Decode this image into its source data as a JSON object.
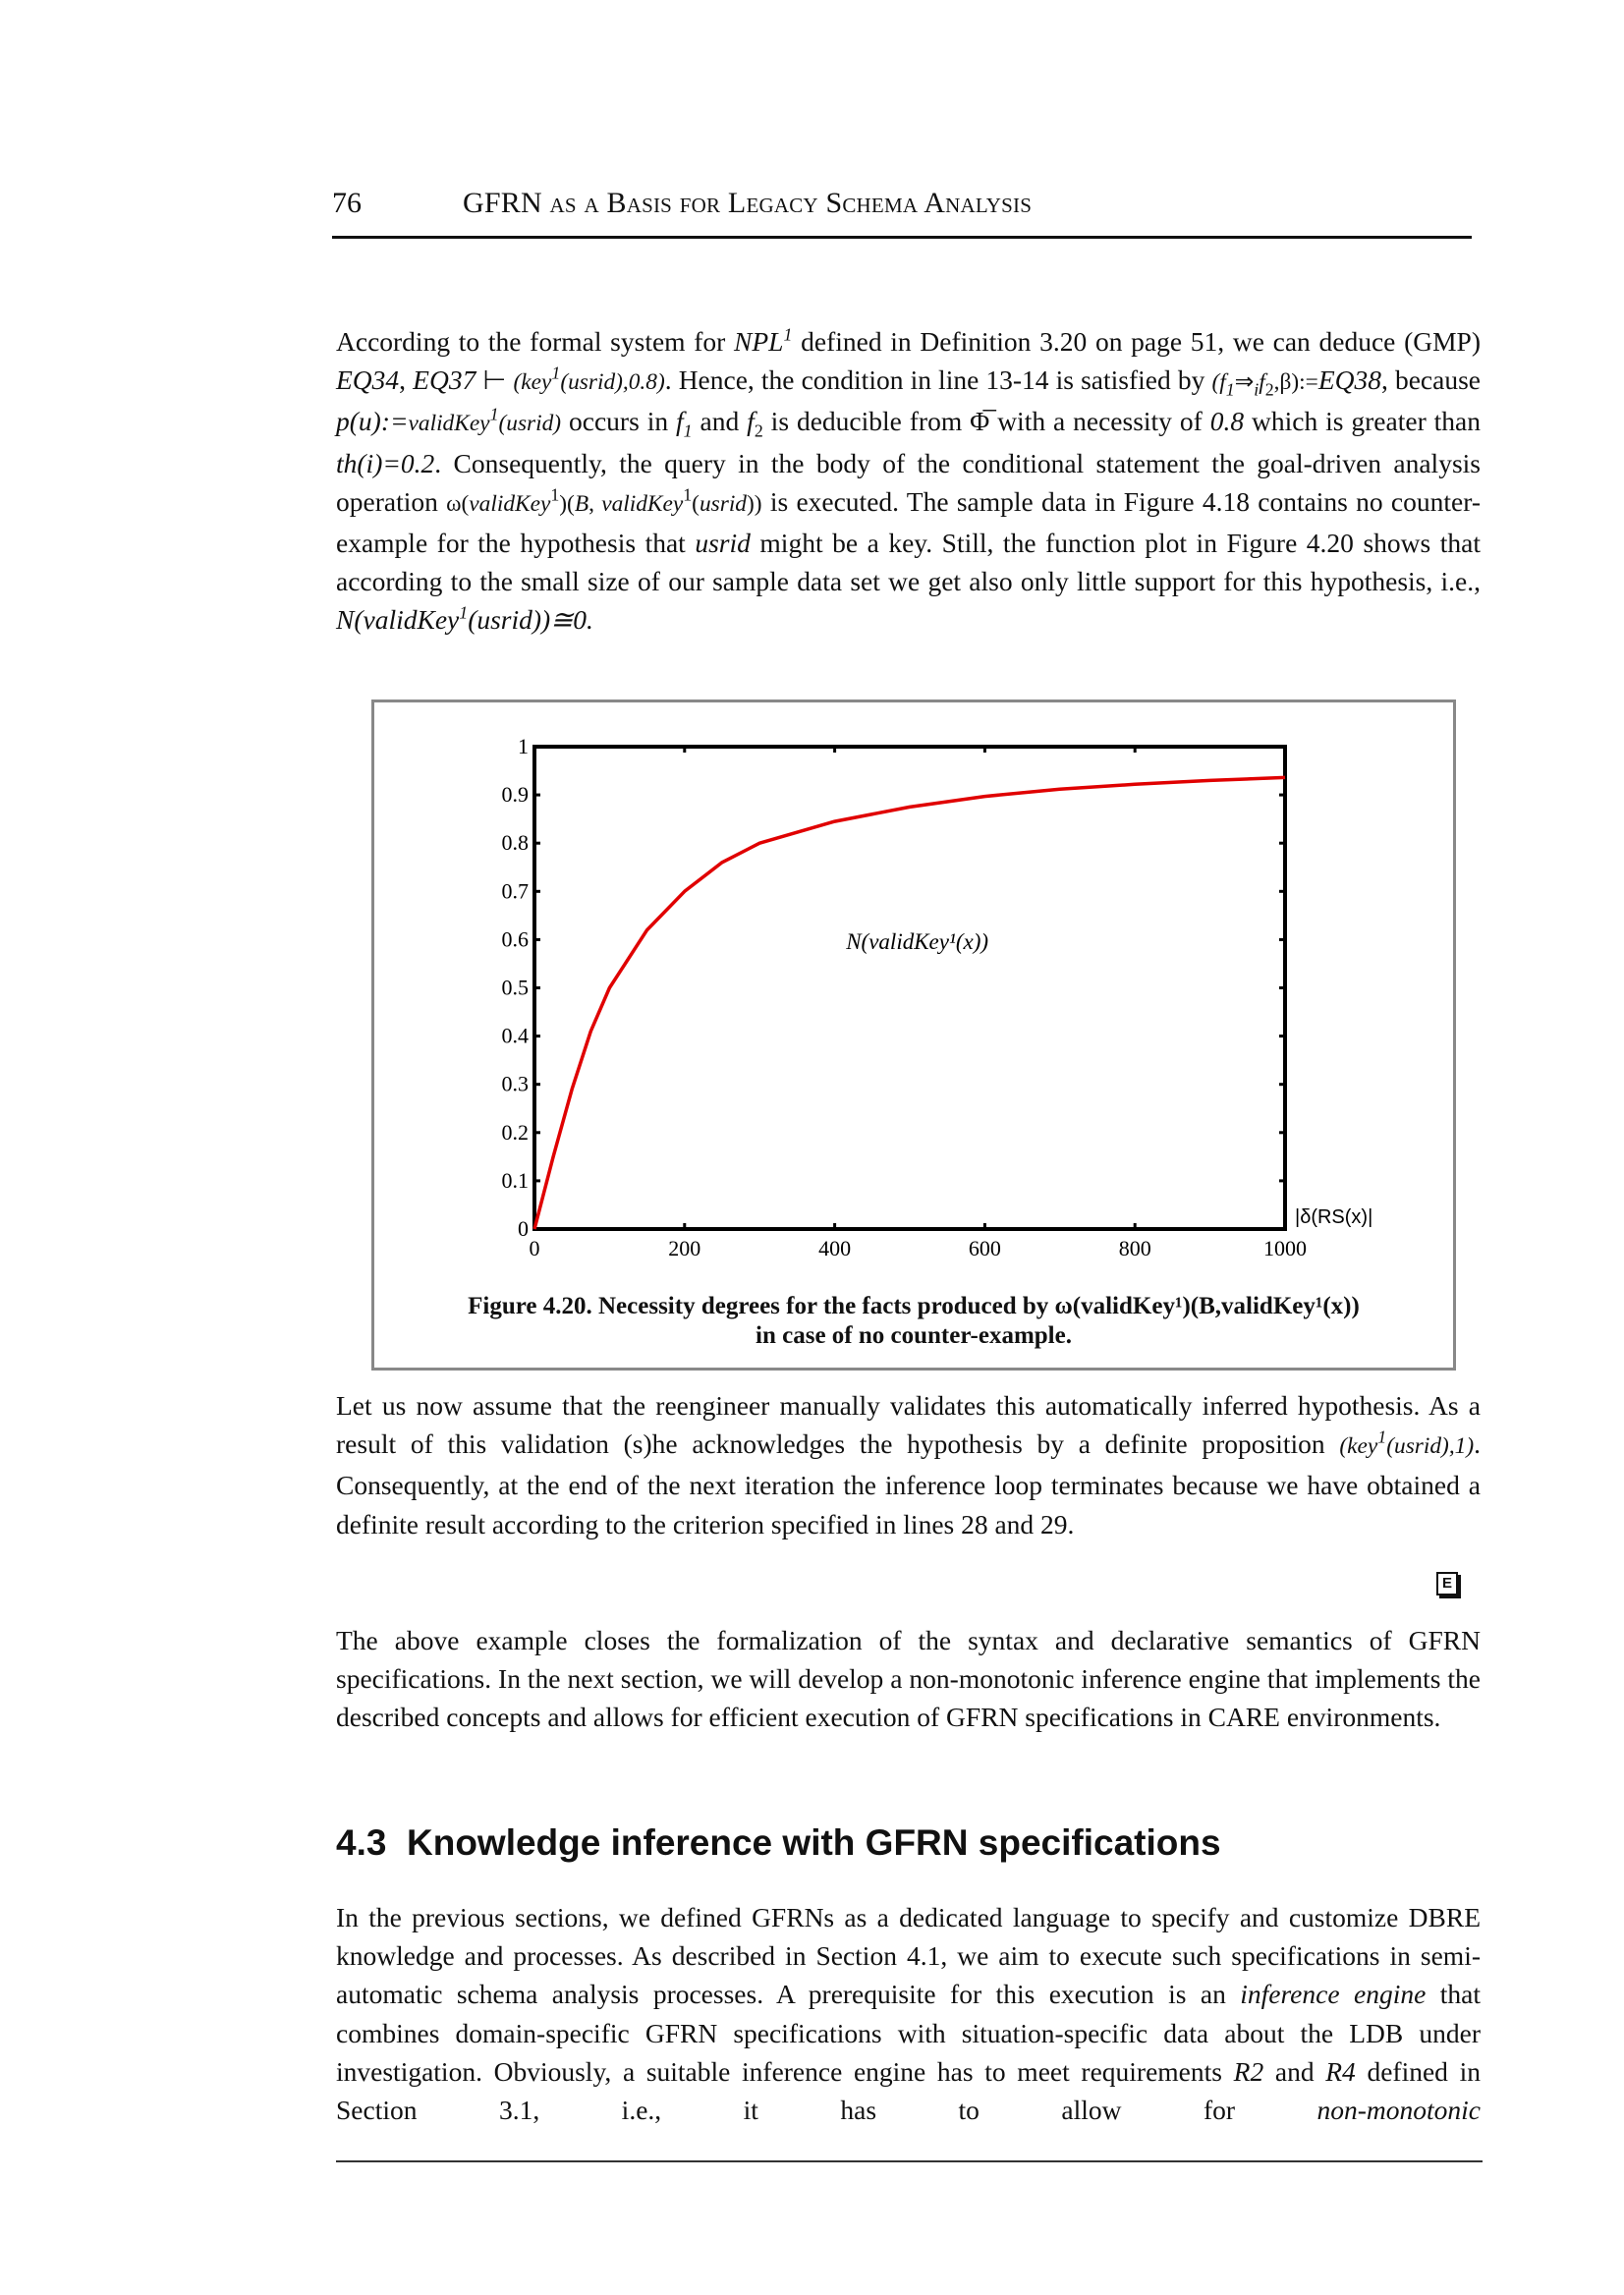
{
  "header": {
    "page_number": "76",
    "title": "GFRN as a Basis for Legacy Schema Analysis"
  },
  "paragraphs": [
    {
      "segments": [
        {
          "t": "According to the formal system for "
        },
        {
          "t": "NPL",
          "s": "i"
        },
        {
          "t": "1",
          "s": "sup i"
        },
        {
          "t": " defined in Definition 3.20 on page 51, we can deduce (GMP) "
        },
        {
          "t": "EQ34",
          "s": "i"
        },
        {
          "t": ", "
        },
        {
          "t": "EQ37",
          "s": "i"
        },
        {
          "t": " ⊢ "
        },
        {
          "t": "(key",
          "s": "i small"
        },
        {
          "t": "1",
          "s": "sup i"
        },
        {
          "t": "(usrid),0.8)",
          "s": "i small"
        },
        {
          "t": ". Hence, the condition in line 13-14 is satisfied by "
        },
        {
          "t": "(f",
          "s": "i small"
        },
        {
          "t": "1",
          "s": "sub i"
        },
        {
          "t": "⇒",
          "s": "small"
        },
        {
          "t": "i",
          "s": "sub i"
        },
        {
          "t": "f",
          "s": "i small"
        },
        {
          "t": "2",
          "s": "sub"
        },
        {
          "t": ",β):=",
          "s": "small"
        },
        {
          "t": "EQ38",
          "s": "i"
        },
        {
          "t": ", because "
        },
        {
          "t": "p(u):=",
          "s": "i"
        },
        {
          "t": "validKey",
          "s": "i small"
        },
        {
          "t": "1",
          "s": "sup i"
        },
        {
          "t": "(usrid)",
          "s": "i small"
        },
        {
          "t": " occurs in "
        },
        {
          "t": "f",
          "s": "i"
        },
        {
          "t": "1",
          "s": "sub i"
        },
        {
          "t": " and "
        },
        {
          "t": "f",
          "s": "i"
        },
        {
          "t": "2",
          "s": "sub"
        },
        {
          "t": " is deducible from "
        },
        {
          "t": "Φ̅"
        },
        {
          "t": " with a necessity of "
        },
        {
          "t": "0.8",
          "s": "i"
        },
        {
          "t": " which is greater than "
        },
        {
          "t": "th(i)=0.2",
          "s": "i"
        },
        {
          "t": ". Consequently, the query in the body of the conditional statement the goal-driven analysis operation "
        },
        {
          "t": "ω(",
          "s": "small"
        },
        {
          "t": "validKey",
          "s": "i small"
        },
        {
          "t": "1",
          "s": "sup"
        },
        {
          "t": ")(",
          "s": "small"
        },
        {
          "t": "B",
          "s": "i small"
        },
        {
          "t": ", ",
          "s": "small"
        },
        {
          "t": "validKey",
          "s": "i small"
        },
        {
          "t": "1",
          "s": "sup"
        },
        {
          "t": "(",
          "s": "small"
        },
        {
          "t": "usrid",
          "s": "i small"
        },
        {
          "t": "))",
          "s": "small"
        },
        {
          "t": " is executed. The sample data in Figure 4.18 contains no counter-example for the hypothesis that "
        },
        {
          "t": "usrid",
          "s": "i"
        },
        {
          "t": " might be a key. Still, the function plot in Figure 4.20 shows that according to the small size of our sample data set we get also only little support for this hypothesis, i.e., "
        },
        {
          "t": "N(validKey",
          "s": "i"
        },
        {
          "t": "1",
          "s": "sup i"
        },
        {
          "t": "(usrid))≅0.",
          "s": "i"
        }
      ]
    },
    {
      "segments": [
        {
          "t": "Let us now assume that the reengineer manually validates this automatically inferred hypothesis. As a result of this validation (s)he acknowledges the hypothesis by a definite proposition "
        },
        {
          "t": "(key",
          "s": "i small"
        },
        {
          "t": "1",
          "s": "sup i"
        },
        {
          "t": "(usrid),1)",
          "s": "i small"
        },
        {
          "t": ". Consequently, at the end of the next iteration the inference loop terminates because we have obtained a definite result according to the criterion specified in lines 28 and 29."
        }
      ]
    },
    {
      "segments": [
        {
          "t": "The above example closes the formalization of the syntax and declarative semantics of GFRN specifications. In the next section, we will develop a non-monotonic inference engine that implements the described concepts and allows for efficient execution of GFRN specifications in CARE environments."
        }
      ]
    },
    {
      "segments": [
        {
          "t": "In the previous sections, we defined GFRNs as a dedicated language to specify and customize DBRE knowledge and processes. As described in Section 4.1, we aim to execute such specifications in semi-automatic schema analysis processes. A prerequisite for this execution is an "
        },
        {
          "t": "inference engine",
          "s": "i"
        },
        {
          "t": " that combines domain-specific GFRN specifications with situation-specific data about the LDB under investigation. Obviously, a suitable inference engine has to meet requirements "
        },
        {
          "t": "R2",
          "s": "i"
        },
        {
          "t": " and "
        },
        {
          "t": "R4",
          "s": "i"
        },
        {
          "t": " defined in Section 3.1, i.e., it has to allow for "
        },
        {
          "t": "non-monotonic",
          "s": "i"
        }
      ]
    }
  ],
  "end_of_example_icon": {
    "name": "end-of-example-icon",
    "glyph": "E"
  },
  "section": {
    "number": "4.3",
    "title": "Knowledge inference with GFRN specifications"
  },
  "figure": {
    "caption_line1": "Figure 4.20.  Necessity degrees for the facts produced by ω(validKey¹)(B,validKey¹(x))",
    "caption_line2": "in case of no counter-example."
  },
  "chart_data": {
    "type": "line",
    "title": "",
    "xlabel": "|δ(RS(x)|",
    "ylabel": "",
    "xlim": [
      0,
      1000
    ],
    "ylim": [
      0,
      1
    ],
    "x_ticks": [
      "0",
      "200",
      "400",
      "600",
      "800",
      "1000"
    ],
    "y_ticks": [
      "0",
      "0.1",
      "0.2",
      "0.3",
      "0.4",
      "0.5",
      "0.6",
      "0.7",
      "0.8",
      "0.9",
      "1"
    ],
    "grid": false,
    "annotation": "N(validKey¹(x))",
    "series": [
      {
        "color": "#e00000",
        "x": [
          0,
          25,
          50,
          75,
          100,
          150,
          200,
          250,
          300,
          400,
          500,
          600,
          700,
          800,
          900,
          1000
        ],
        "y": [
          0,
          0.15,
          0.29,
          0.41,
          0.5,
          0.62,
          0.7,
          0.76,
          0.8,
          0.845,
          0.875,
          0.897,
          0.912,
          0.922,
          0.93,
          0.936
        ]
      }
    ]
  }
}
